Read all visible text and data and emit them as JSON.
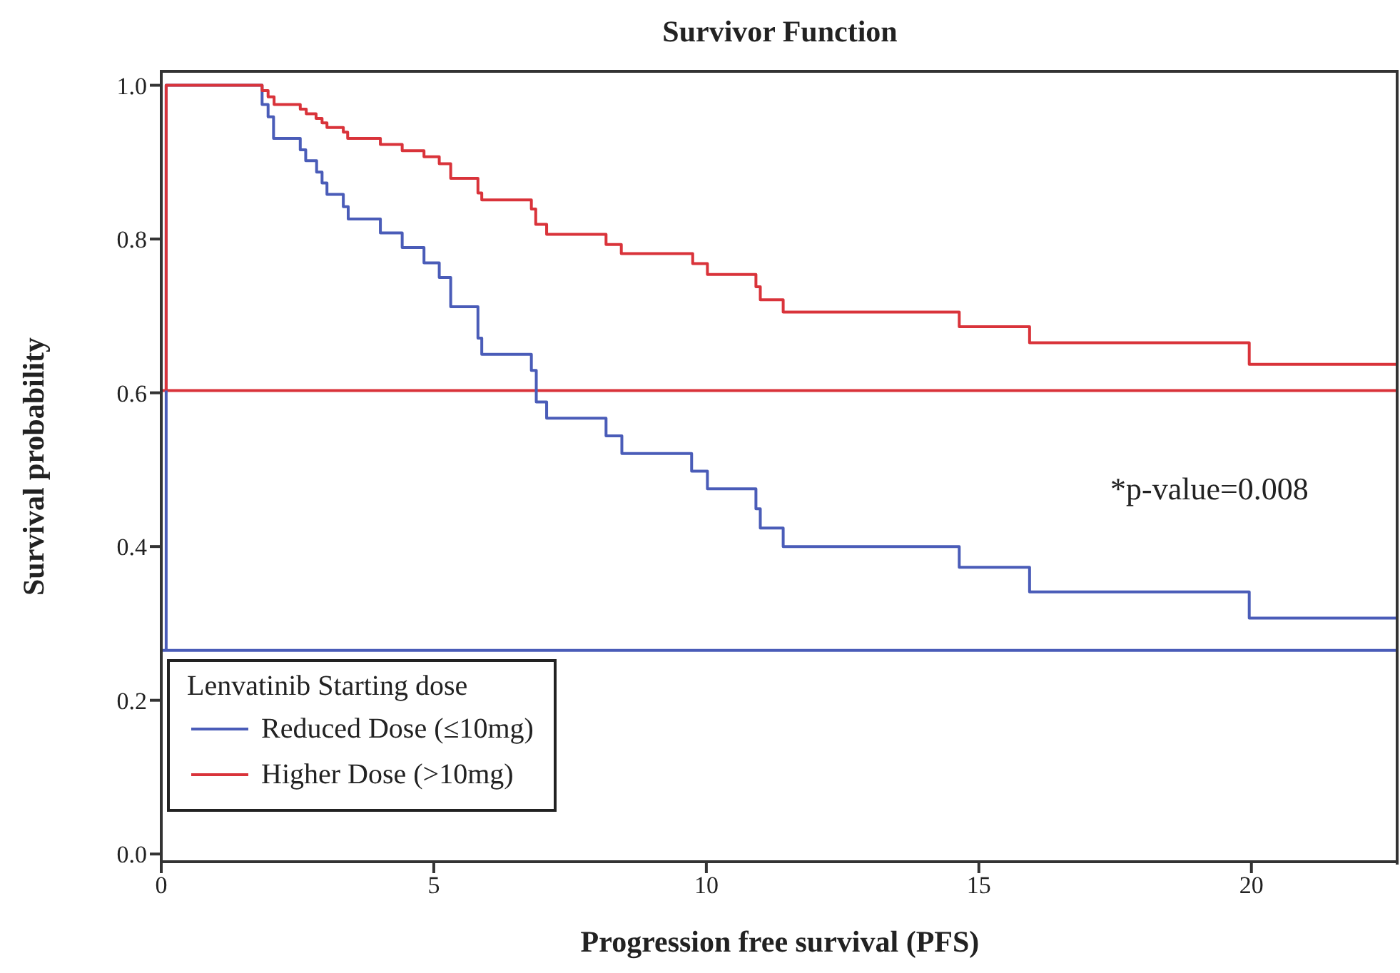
{
  "chart_data": {
    "type": "step",
    "title": "Survivor Function",
    "xlabel": "Progression free survival (PFS)",
    "ylabel": "Survival probability",
    "legend_title": "Lenvatinib Starting dose",
    "legend": "bottom left",
    "marker": "none",
    "xlim": [
      0,
      22.7
    ],
    "xticks": [
      0,
      5,
      10,
      15,
      20
    ],
    "ylim": [
      -0.01,
      1.02
    ],
    "yticks": [
      {
        "value": 0,
        "label": "0.0"
      },
      0.2,
      0.4,
      0.6,
      0.8,
      {
        "value": 1,
        "label": "1.0"
      }
    ],
    "series": [
      {
        "name": "Reduced Dose (≤10mg)",
        "color": "#4a5cb8",
        "x": [
          0.09,
          0.09,
          1.85,
          1.96,
          2.06,
          2.55,
          2.65,
          2.85,
          2.95,
          3.04,
          3.34,
          3.43,
          4.02,
          4.42,
          4.82,
          5.1,
          5.31,
          5.81,
          5.88,
          6.79,
          6.88,
          7.07,
          8.16,
          8.45,
          9.73,
          10.02,
          10.91,
          10.99,
          11.41,
          14.64,
          15.93,
          19.96,
          22.7
        ],
        "values": [
          0.265,
          1.0,
          0.975,
          0.959,
          0.931,
          0.916,
          0.902,
          0.887,
          0.873,
          0.858,
          0.842,
          0.826,
          0.808,
          0.789,
          0.769,
          0.75,
          0.712,
          0.671,
          0.65,
          0.629,
          0.588,
          0.567,
          0.544,
          0.521,
          0.498,
          0.475,
          0.449,
          0.424,
          0.4,
          0.373,
          0.341,
          0.307,
          0.307
        ]
      },
      {
        "name": "Higher Dose (>10mg)",
        "color": "#d9333a",
        "x": [
          0.09,
          0.09,
          1.85,
          1.96,
          2.07,
          2.55,
          2.66,
          2.84,
          2.95,
          3.04,
          3.34,
          3.42,
          4.02,
          4.42,
          4.82,
          5.1,
          5.31,
          5.81,
          5.88,
          6.79,
          6.87,
          7.07,
          8.16,
          8.44,
          9.75,
          10.02,
          10.91,
          10.99,
          11.41,
          14.64,
          15.93,
          19.96,
          22.7
        ],
        "values": [
          0.603,
          1.0,
          0.993,
          0.985,
          0.975,
          0.969,
          0.963,
          0.957,
          0.951,
          0.945,
          0.939,
          0.931,
          0.923,
          0.915,
          0.907,
          0.898,
          0.879,
          0.86,
          0.851,
          0.839,
          0.819,
          0.806,
          0.793,
          0.781,
          0.768,
          0.754,
          0.738,
          0.721,
          0.705,
          0.686,
          0.665,
          0.637,
          0.637
        ]
      }
    ],
    "ref_lines": [
      {
        "axis": "y",
        "value": 0.265,
        "color": "#4a5cb8"
      },
      {
        "axis": "y",
        "value": 0.603,
        "color": "#d9333a"
      }
    ],
    "annotations": [
      "*p-value=0.008"
    ]
  }
}
